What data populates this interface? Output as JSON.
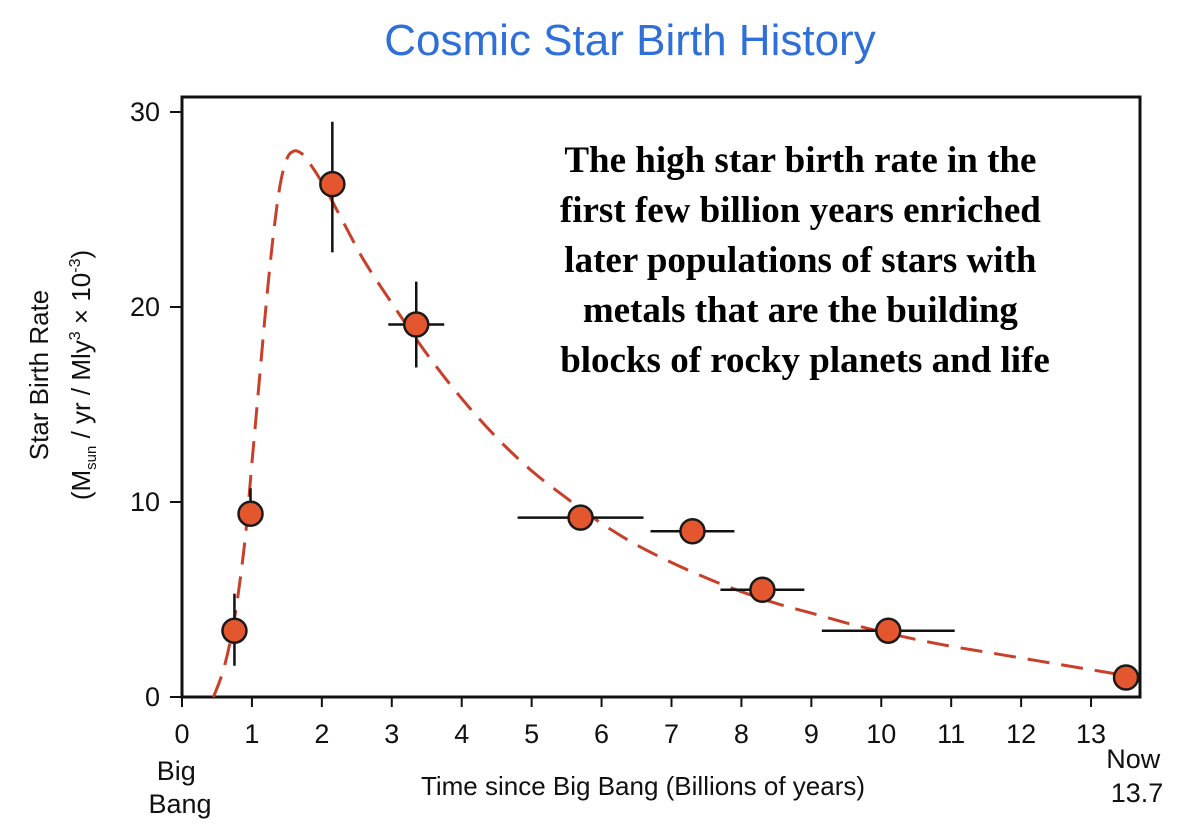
{
  "chart_data": {
    "type": "scatter",
    "title": "Cosmic Star Birth History",
    "xlabel": "Time since Big Bang  (Billions of years)",
    "ylabel": "Star Birth Rate",
    "ylabel_units": {
      "open": "(M",
      "sub": "sun",
      "mid": " / yr / Mly",
      "sup": "3",
      "times": "  × 10",
      "exp": "-3",
      "close": ")"
    },
    "xlim": [
      0,
      13.7
    ],
    "ylim": [
      0,
      30
    ],
    "x_ticks": [
      "0",
      "1",
      "2",
      "3",
      "4",
      "5",
      "6",
      "7",
      "8",
      "9",
      "10",
      "11",
      "12",
      "13"
    ],
    "y_ticks": [
      "0",
      "10",
      "20",
      "30"
    ],
    "x_start_label": [
      "Big",
      "Bang"
    ],
    "x_end_label": [
      "Now",
      "13.7"
    ],
    "annotation": [
      "The high star birth rate in the",
      "first few billion years enriched",
      "later populations of stars with",
      "metals that are the building",
      "blocks of rocky planets and life"
    ],
    "points": [
      {
        "x": 0.75,
        "y": 3.4,
        "xerr": 0.15,
        "yerr_low": 1.8,
        "yerr_high": 1.9
      },
      {
        "x": 0.98,
        "y": 9.4,
        "xerr": 0.0,
        "yerr_low": 0.0,
        "yerr_high": 1.3
      },
      {
        "x": 2.15,
        "y": 26.3,
        "xerr": 0.0,
        "yerr_low": 3.5,
        "yerr_high": 3.2
      },
      {
        "x": 3.35,
        "y": 19.1,
        "xerr": 0.4,
        "yerr_low": 2.2,
        "yerr_high": 2.2
      },
      {
        "x": 5.7,
        "y": 9.2,
        "xerr": 0.9,
        "yerr_low": 0.5,
        "yerr_high": 0.5
      },
      {
        "x": 7.3,
        "y": 8.5,
        "xerr": 0.6,
        "yerr_low": 0.4,
        "yerr_high": 0.4
      },
      {
        "x": 8.3,
        "y": 5.5,
        "xerr": 0.6,
        "yerr_low": 0.5,
        "yerr_high": 0.5
      },
      {
        "x": 10.1,
        "y": 3.4,
        "xerr": 0.95,
        "yerr_low": 0.0,
        "yerr_high": 0.0
      },
      {
        "x": 13.5,
        "y": 1.0,
        "xerr": 0.0,
        "yerr_low": 0.0,
        "yerr_high": 0.0
      }
    ],
    "fit_curve": {
      "style": "dashed",
      "x": [
        0.45,
        0.6,
        0.75,
        0.9,
        1.0,
        1.1,
        1.2,
        1.3,
        1.4,
        1.5,
        1.6,
        1.7,
        1.8,
        2.0,
        2.3,
        2.6,
        3.0,
        3.5,
        4.0,
        4.5,
        5.0,
        5.5,
        6.0,
        6.5,
        7.0,
        7.5,
        8.0,
        8.5,
        9.0,
        9.5,
        10.0,
        10.5,
        11.0,
        11.5,
        12.0,
        12.5,
        13.0,
        13.5
      ],
      "y": [
        0.0,
        1.5,
        4.0,
        8.0,
        12.0,
        16.0,
        20.0,
        23.5,
        26.2,
        27.6,
        28.0,
        27.9,
        27.5,
        26.4,
        24.4,
        22.4,
        20.2,
        17.6,
        15.3,
        13.3,
        11.6,
        10.2,
        8.9,
        7.8,
        6.9,
        6.1,
        5.4,
        4.8,
        4.3,
        3.8,
        3.35,
        2.95,
        2.6,
        2.3,
        2.0,
        1.7,
        1.4,
        1.1
      ]
    },
    "colors": {
      "title": "#2e6fd8",
      "curve": "#c8402a",
      "marker_fill": "#e4572e",
      "marker_edge": "#1a1a1a",
      "error_bar": "#111111"
    }
  }
}
